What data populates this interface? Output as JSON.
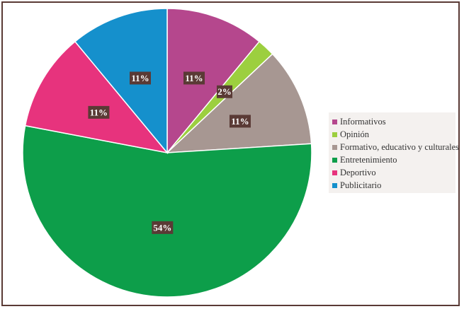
{
  "chart_data": {
    "type": "pie",
    "slices": [
      {
        "label": "Informativos",
        "value": 11,
        "display": "11%",
        "color": "#b5478d"
      },
      {
        "label": "Opinión",
        "value": 2,
        "display": "2%",
        "color": "#9ccf3f"
      },
      {
        "label": "Formativo, educativo y culturales",
        "value": 11,
        "display": "11%",
        "color": "#a79792"
      },
      {
        "label": "Entretenimiento",
        "value": 54,
        "display": "54%",
        "color": "#0d9e4a"
      },
      {
        "label": "Deportivo",
        "value": 11,
        "display": "11%",
        "color": "#e7337d"
      },
      {
        "label": "Publicitario",
        "value": 11,
        "display": "11%",
        "color": "#1590cc"
      }
    ],
    "legend_position": "right",
    "label_style": "dark boxes with white percentage text"
  }
}
